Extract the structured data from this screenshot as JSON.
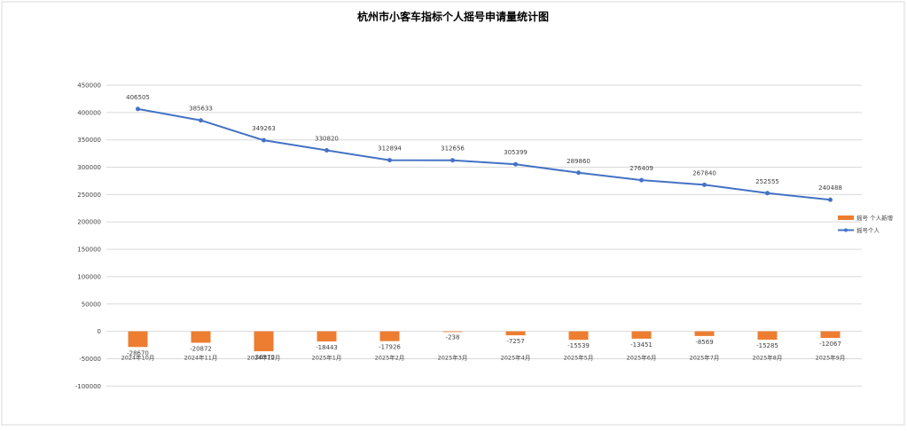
{
  "chart_data": {
    "type": "bar+line",
    "title": "杭州市小客车指标个人摇号申请量统计图",
    "categories": [
      "2024年10月",
      "2024年11月",
      "2024年12月",
      "2025年1月",
      "2025年2月",
      "2025年3月",
      "2025年4月",
      "2025年5月",
      "2025年6月",
      "2025年7月",
      "2025年8月",
      "2025年9月"
    ],
    "series": [
      {
        "name": "摇号 个人新增",
        "type": "bar",
        "color": "#ED7D31",
        "values": [
          -28670,
          -20872,
          -36370,
          -18443,
          -17926,
          -238,
          -7257,
          -15539,
          -13451,
          -8569,
          -15285,
          -12067
        ],
        "labels": [
          "-28670",
          "-20872",
          "-36370",
          "-18443",
          "-17926",
          "-238",
          "-7257",
          "-15539",
          "-13451",
          "-8569",
          "-15285",
          "-12067"
        ]
      },
      {
        "name": "摇号个人",
        "type": "line",
        "color": "#4472C4",
        "values": [
          406505,
          385633,
          349263,
          330820,
          312894,
          312656,
          305399,
          289860,
          276409,
          267840,
          252555,
          240488
        ],
        "labels": [
          "406505",
          "385633",
          "349263",
          "330820",
          "312894",
          "312656",
          "305399",
          "289860",
          "276409",
          "267840",
          "252555",
          "240488"
        ]
      }
    ],
    "ylim": [
      -100000,
      450000
    ],
    "yticks": [
      450000,
      400000,
      350000,
      300000,
      250000,
      200000,
      150000,
      100000,
      50000,
      0,
      -50000,
      -100000
    ],
    "ytick_labels": [
      "450000",
      "400000",
      "350000",
      "300000",
      "250000",
      "200000",
      "150000",
      "100000",
      "50000",
      "0",
      "-50000",
      "-100000"
    ],
    "grid": true,
    "legend_position": "right"
  }
}
